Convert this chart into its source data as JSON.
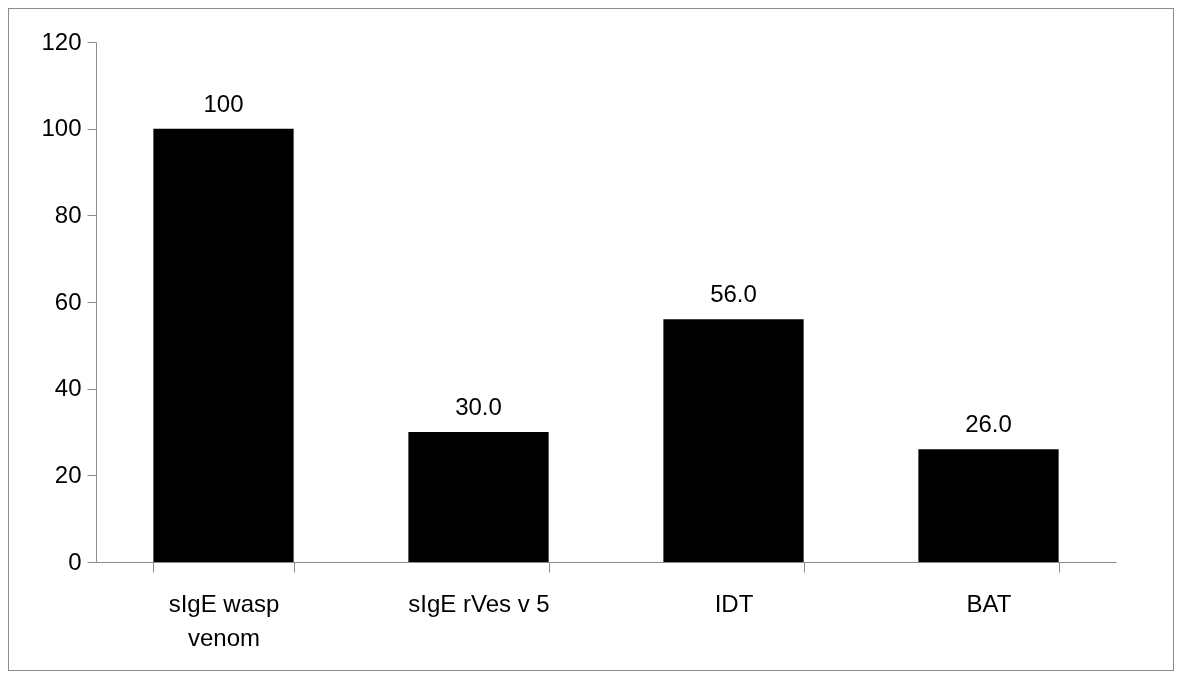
{
  "chart_data": {
    "type": "bar",
    "categories": [
      "sIgE wasp venom",
      "sIgE rVes v 5",
      "IDT",
      "BAT"
    ],
    "values": [
      100,
      30,
      56,
      26
    ],
    "value_labels": [
      "100",
      "30.0",
      "56.0",
      "26.0"
    ],
    "color": "#000000",
    "ylim": [
      0,
      120
    ],
    "yticks": [
      0,
      20,
      40,
      60,
      80,
      100,
      120
    ],
    "grid": false
  }
}
